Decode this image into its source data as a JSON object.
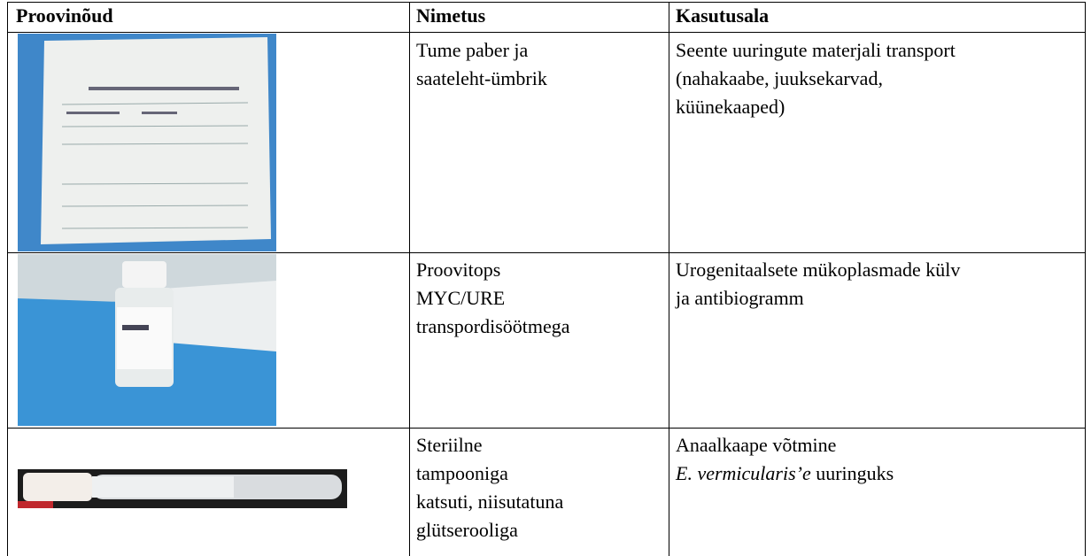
{
  "table": {
    "header": [
      "Proovinõud",
      "Nimetus",
      "Kasutusala"
    ],
    "rows": [
      {
        "name": [
          "Tume paber ja",
          "saateleht-ümbrik"
        ],
        "usage": [
          "Seente uuringute materjali transport",
          "(nahakaabe, juuksekarvad,",
          "küünekaaped)"
        ]
      },
      {
        "name": [
          "Proovitops",
          "MYC/URE",
          "transpordisöötmega"
        ],
        "usage": [
          "Urogenitaalsete mükoplasmade külv",
          "ja antibiogramm"
        ]
      },
      {
        "name": [
          "Steriilne",
          "tampooniga",
          "katsuti, niisutatuna",
          "glütserooliga"
        ],
        "usage": [
          "Anaalkaape võtmine"
        ],
        "usage_italic": "E. vermicularis’e",
        "usage_rest": " uuringuks"
      }
    ]
  }
}
